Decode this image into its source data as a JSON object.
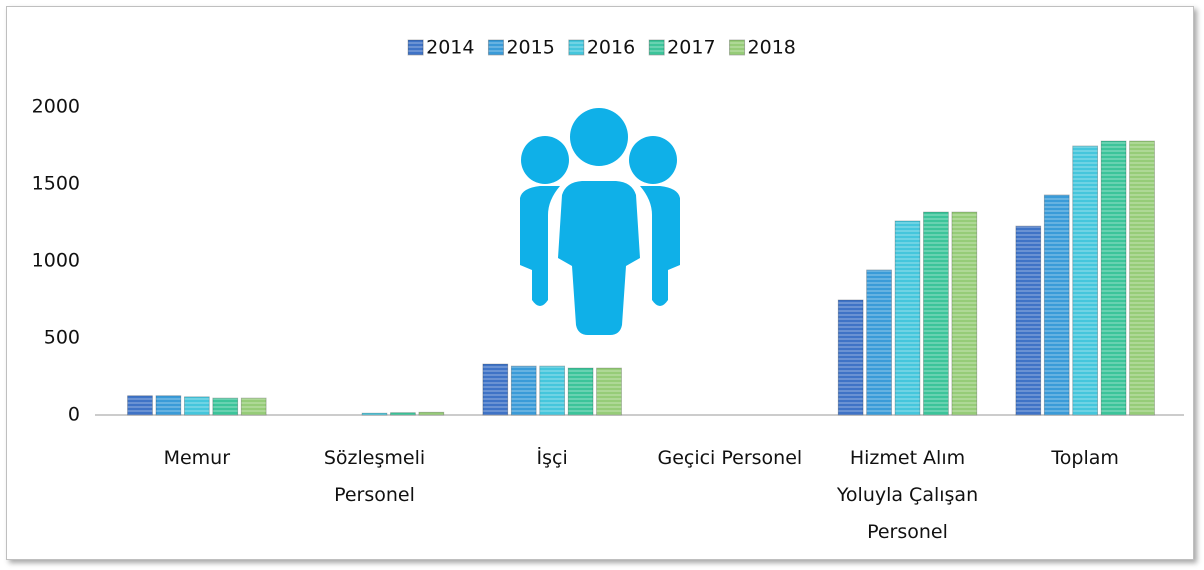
{
  "chart_data": {
    "type": "bar",
    "categories": [
      "Memur",
      "Sözleşmeli Personel",
      "İşçi",
      "Geçici Personel",
      "Hizmet Alım Yoluyla Çalışan Personel",
      "Toplam"
    ],
    "series": [
      {
        "name": "2014",
        "color": "#3f73c6",
        "values": [
          125,
          0,
          331,
          0,
          747,
          1227
        ]
      },
      {
        "name": "2015",
        "color": "#3a9bd8",
        "values": [
          125,
          0,
          318,
          0,
          942,
          1429
        ]
      },
      {
        "name": "2016",
        "color": "#45c6dc",
        "values": [
          118,
          12,
          318,
          0,
          1260,
          1747
        ]
      },
      {
        "name": "2017",
        "color": "#3cc49a",
        "values": [
          110,
          15,
          305,
          0,
          1318,
          1779
        ]
      },
      {
        "name": "2018",
        "color": "#96cc78",
        "values": [
          110,
          18,
          305,
          0,
          1318,
          1779
        ]
      }
    ],
    "ylim": [
      0,
      2000
    ],
    "yticks": [
      0,
      500,
      1000,
      1500,
      2000
    ],
    "legend": "top"
  }
}
